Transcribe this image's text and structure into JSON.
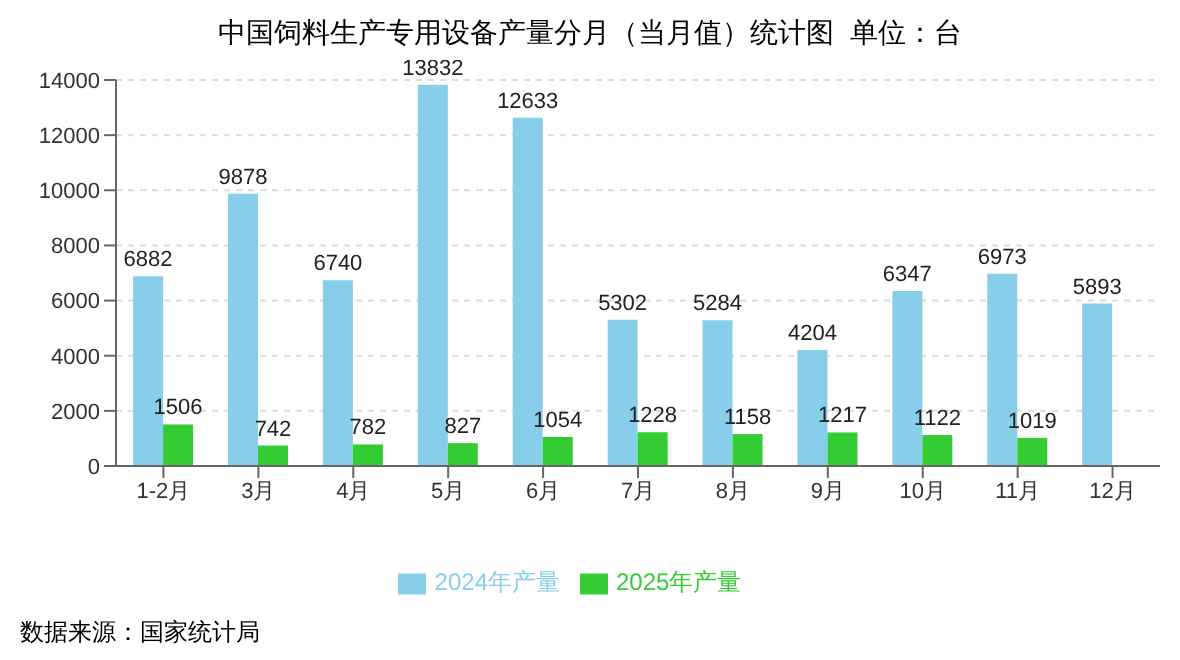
{
  "chart_data": {
    "type": "bar",
    "title": "中国饲料生产专用设备产量分月（当月值）统计图  单位：台",
    "categories": [
      "1-2月",
      "3月",
      "4月",
      "5月",
      "6月",
      "7月",
      "8月",
      "9月",
      "10月",
      "11月",
      "12月"
    ],
    "series": [
      {
        "name": "2024年产量",
        "color": "#87ceeb",
        "values": [
          6882,
          9878,
          6740,
          13832,
          12633,
          5302,
          5284,
          4204,
          6347,
          6973,
          5893
        ]
      },
      {
        "name": "2025年产量",
        "color": "#33cc33",
        "values": [
          1506,
          742,
          782,
          827,
          1054,
          1228,
          1158,
          1217,
          1122,
          1019,
          null
        ]
      }
    ],
    "ylim": [
      0,
      14000
    ],
    "yticks": [
      0,
      2000,
      4000,
      6000,
      8000,
      10000,
      12000,
      14000
    ],
    "grid": "y",
    "legend": "bottom",
    "data_labels": true,
    "annotations": [
      "数据来源：国家统计局"
    ]
  }
}
